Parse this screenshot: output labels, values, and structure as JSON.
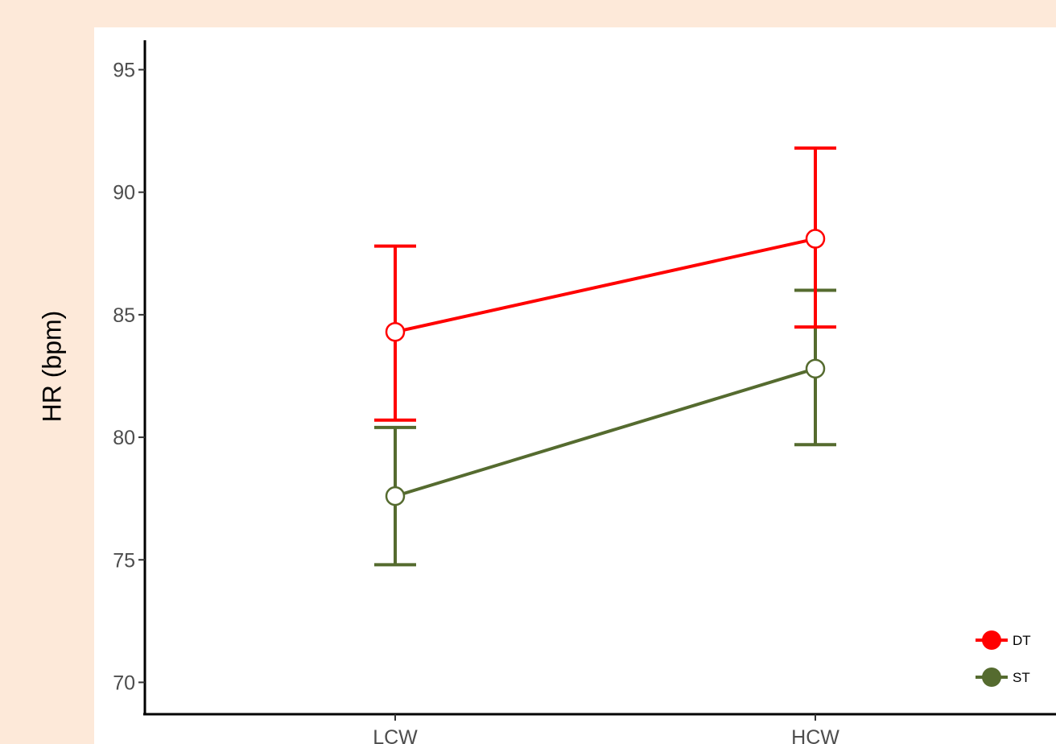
{
  "chart_data": {
    "type": "line",
    "title": "",
    "xlabel": "",
    "ylabel": "HR (bpm)",
    "categories": [
      "LCW",
      "HCW"
    ],
    "ylim": [
      68.7,
      96.2
    ],
    "yticks": [
      70,
      75,
      80,
      85,
      90,
      95
    ],
    "grid": false,
    "legend_position": "bottom-right",
    "series": [
      {
        "name": "DT",
        "color": "#ff0000",
        "values": [
          84.3,
          88.1
        ],
        "error_upper": [
          87.8,
          91.8
        ],
        "error_lower": [
          80.7,
          84.5
        ]
      },
      {
        "name": "ST",
        "color": "#556b2f",
        "values": [
          77.6,
          82.8
        ],
        "error_upper": [
          80.4,
          86.0
        ],
        "error_lower": [
          74.8,
          79.7
        ]
      }
    ]
  }
}
